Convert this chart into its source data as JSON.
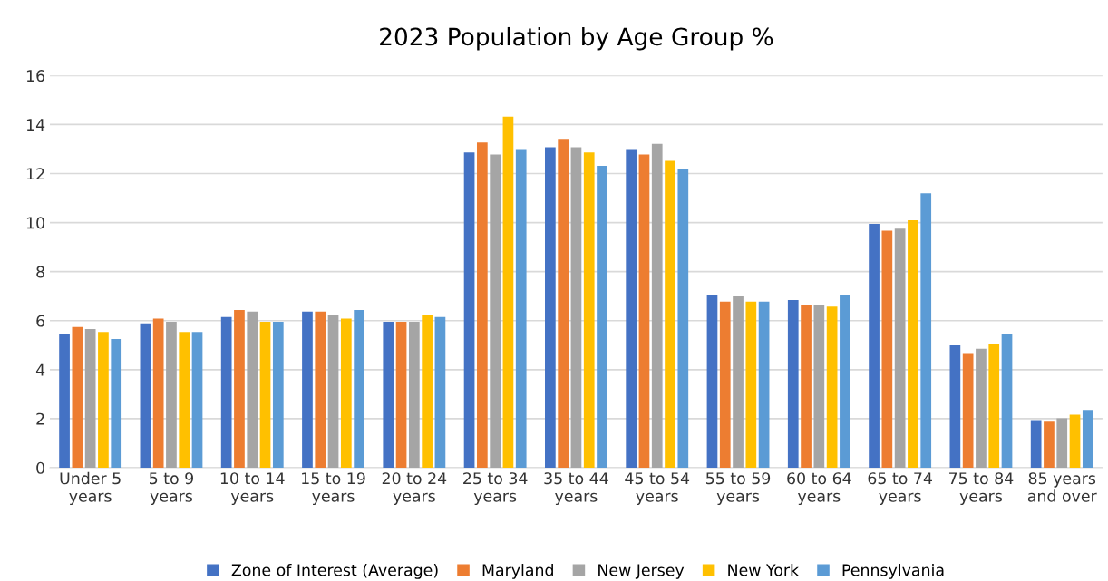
{
  "chart_data": {
    "type": "bar",
    "title": "2023 Population by Age Group %",
    "categories": [
      "Under 5\nyears",
      "5 to 9\nyears",
      "10 to 14\nyears",
      "15 to 19\nyears",
      "20 to 24\nyears",
      "25 to 34\nyears",
      "35 to 44\nyears",
      "45 to 54\nyears",
      "55 to 59\nyears",
      "60 to 64\nyears",
      "65 to 74\nyears",
      "75 to 84\nyears",
      "85 years\nand over"
    ],
    "series": [
      {
        "name": "Zone of Interest (Average)",
        "color": "#4472c4",
        "values": [
          5.46,
          5.89,
          6.15,
          6.37,
          5.95,
          12.86,
          13.07,
          13.0,
          7.06,
          6.84,
          9.95,
          4.99,
          1.94
        ]
      },
      {
        "name": "Maryland",
        "color": "#ed7d31",
        "values": [
          5.74,
          6.08,
          6.43,
          6.37,
          5.95,
          13.27,
          13.41,
          12.78,
          6.78,
          6.64,
          9.67,
          4.64,
          1.88
        ]
      },
      {
        "name": "New Jersey",
        "color": "#a5a5a5",
        "values": [
          5.66,
          5.95,
          6.37,
          6.23,
          5.95,
          12.78,
          13.07,
          13.21,
          6.99,
          6.64,
          9.75,
          4.85,
          2.02
        ]
      },
      {
        "name": "New York",
        "color": "#ffc000",
        "values": [
          5.54,
          5.54,
          5.95,
          6.08,
          6.23,
          14.32,
          12.86,
          12.52,
          6.78,
          6.57,
          10.1,
          5.05,
          2.16
        ]
      },
      {
        "name": "Pennsylvania",
        "color": "#5b9bd5",
        "values": [
          5.25,
          5.54,
          5.95,
          6.43,
          6.15,
          13.0,
          12.31,
          12.17,
          6.78,
          7.06,
          11.2,
          5.46,
          2.36
        ]
      }
    ],
    "ylim": [
      0,
      16
    ],
    "yticks": [
      0,
      2,
      4,
      6,
      8,
      10,
      12,
      14,
      16
    ],
    "grid": "y",
    "legend": "bottom"
  }
}
